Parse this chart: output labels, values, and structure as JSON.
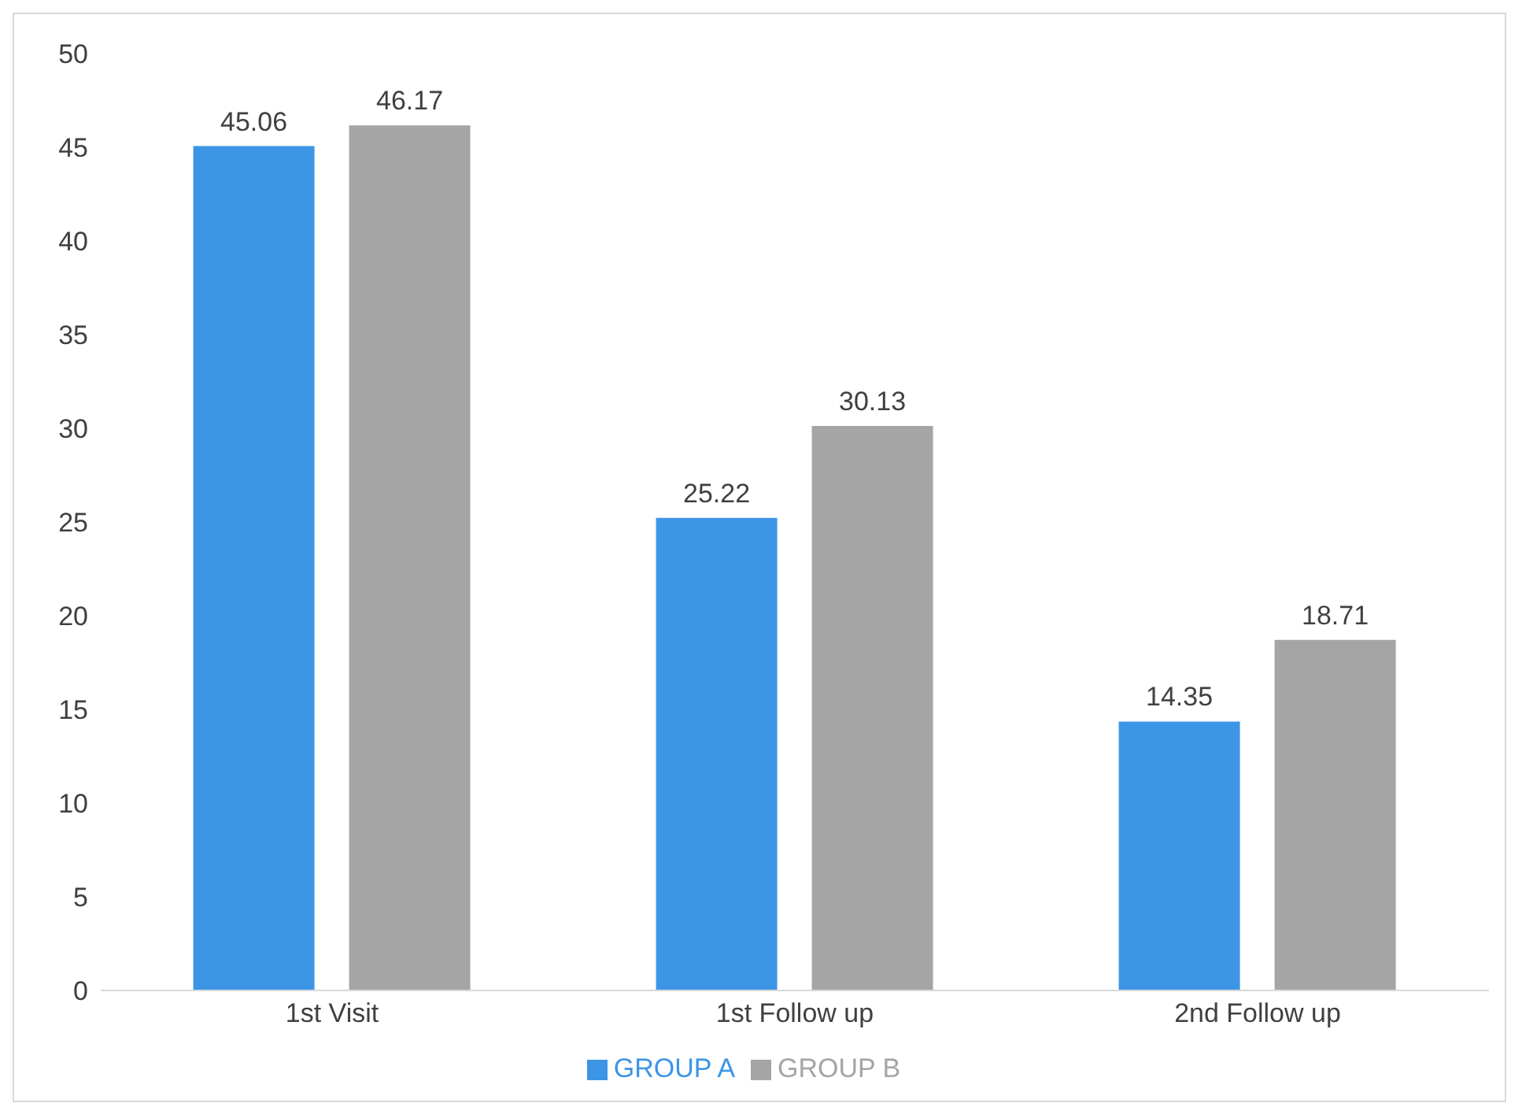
{
  "chart_data": {
    "type": "bar",
    "categories": [
      "1st Visit",
      "1st Follow up",
      "2nd Follow up"
    ],
    "series": [
      {
        "name": "GROUP A",
        "color": "#3d95e6",
        "values": [
          45.06,
          25.22,
          14.35
        ]
      },
      {
        "name": "GROUP B",
        "color": "#a5a5a5",
        "values": [
          46.17,
          30.13,
          18.71
        ]
      }
    ],
    "ylim": [
      0,
      50
    ],
    "yticks": [
      0,
      5,
      10,
      15,
      20,
      25,
      30,
      35,
      40,
      45,
      50
    ],
    "grid": false,
    "legend": "bottom",
    "data_labels": true
  }
}
